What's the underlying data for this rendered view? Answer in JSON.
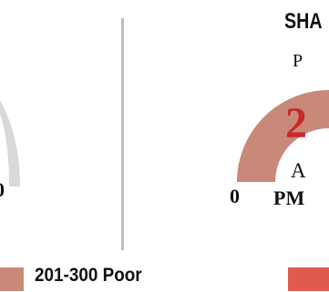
{
  "header": {
    "title": "SHA",
    "subtitle": "P"
  },
  "gauge": {
    "value": "2",
    "label_line1": "A",
    "label_line2": "PM",
    "min_left": "0",
    "min_right": "0",
    "arc_color": "#c98978",
    "left_arc_color": "#d9d9d9"
  },
  "legend": {
    "items": [
      {
        "label": "201-300 Poor",
        "color": "#c98978"
      },
      {
        "label": "",
        "color": "#e05a4e"
      }
    ]
  },
  "colors": {
    "value_color": "#c62828",
    "divider": "#bdbdbd"
  }
}
